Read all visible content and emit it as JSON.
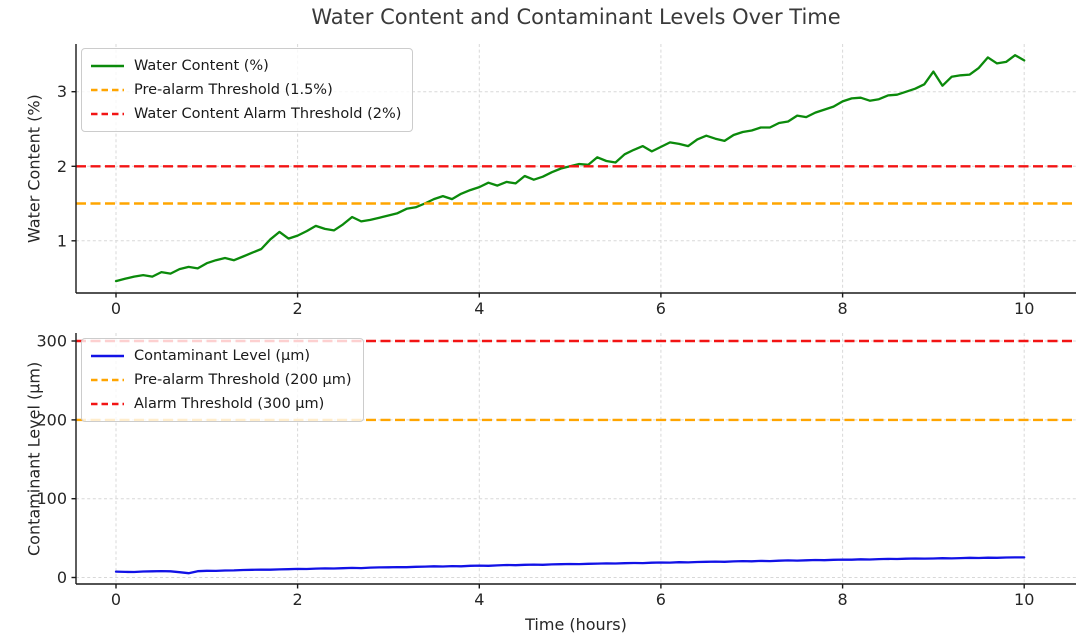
{
  "chart_data": {
    "type": "line",
    "title": "Water Content and Contaminant Levels Over Time",
    "xlabel": "Time (hours)",
    "layout": "two stacked subplots sharing the same time axis, grid on, legends upper-left",
    "style": {
      "grid_color": "#d8d8d8",
      "spine_color": "#1a1a1a",
      "tick_text_color": "#262626",
      "title_color": "#3a3a3a",
      "legend_border": "#cccccc",
      "water_color": "#0b8a0b",
      "contaminant_color": "#1212e6",
      "prealarm_color": "#ffa500",
      "alarm_color": "#f21414"
    },
    "x": [
      0,
      0.1,
      0.2,
      0.3,
      0.4,
      0.5,
      0.6,
      0.7,
      0.8,
      0.9,
      1,
      1.1,
      1.2,
      1.3,
      1.4,
      1.5,
      1.6,
      1.7,
      1.8,
      1.9,
      2,
      2.1,
      2.2,
      2.3,
      2.4,
      2.5,
      2.6,
      2.7,
      2.8,
      2.9,
      3,
      3.1,
      3.2,
      3.3,
      3.4,
      3.5,
      3.6,
      3.7,
      3.8,
      3.9,
      4,
      4.1,
      4.2,
      4.3,
      4.4,
      4.5,
      4.6,
      4.7,
      4.8,
      4.9,
      5,
      5.1,
      5.2,
      5.3,
      5.4,
      5.5,
      5.6,
      5.7,
      5.8,
      5.9,
      6,
      6.1,
      6.2,
      6.3,
      6.4,
      6.5,
      6.6,
      6.7,
      6.8,
      6.9,
      7,
      7.1,
      7.2,
      7.3,
      7.4,
      7.5,
      7.6,
      7.7,
      7.8,
      7.9,
      8,
      8.1,
      8.2,
      8.3,
      8.4,
      8.5,
      8.6,
      8.7,
      8.8,
      8.9,
      9,
      9.1,
      9.2,
      9.3,
      9.4,
      9.5,
      9.6,
      9.7,
      9.8,
      9.9,
      10
    ],
    "charts": [
      {
        "id": "water-content",
        "ylabel": "Water Content (%)",
        "xlim": [
          -0.44,
          10.57
        ],
        "ylim": [
          0.3,
          3.64
        ],
        "xticks": [
          0,
          2,
          4,
          6,
          8,
          10
        ],
        "yticks": [
          1,
          2,
          3
        ],
        "grid": true,
        "legend_position": "upper left",
        "series": [
          {
            "name": "Water Content (%)",
            "kind": "line",
            "linestyle": "solid",
            "color": "#0b8a0b",
            "y": [
              0.46,
              0.49,
              0.52,
              0.54,
              0.52,
              0.58,
              0.56,
              0.62,
              0.65,
              0.63,
              0.7,
              0.74,
              0.77,
              0.74,
              0.79,
              0.84,
              0.89,
              1.02,
              1.12,
              1.03,
              1.07,
              1.13,
              1.2,
              1.16,
              1.14,
              1.22,
              1.32,
              1.26,
              1.28,
              1.31,
              1.34,
              1.37,
              1.43,
              1.45,
              1.5,
              1.56,
              1.6,
              1.56,
              1.63,
              1.68,
              1.72,
              1.78,
              1.74,
              1.79,
              1.77,
              1.87,
              1.82,
              1.86,
              1.92,
              1.97,
              2.0,
              2.03,
              2.02,
              2.12,
              2.07,
              2.05,
              2.16,
              2.22,
              2.27,
              2.2,
              2.26,
              2.32,
              2.3,
              2.27,
              2.36,
              2.41,
              2.37,
              2.34,
              2.42,
              2.46,
              2.48,
              2.52,
              2.52,
              2.58,
              2.6,
              2.68,
              2.66,
              2.72,
              2.76,
              2.8,
              2.87,
              2.91,
              2.92,
              2.88,
              2.9,
              2.95,
              2.96,
              3.0,
              3.04,
              3.1,
              3.27,
              3.08,
              3.2,
              3.22,
              3.23,
              3.32,
              3.46,
              3.38,
              3.4,
              3.49,
              3.42
            ]
          },
          {
            "name": "Pre-alarm Threshold (1.5%)",
            "kind": "hline",
            "linestyle": "dashed",
            "color": "#ffa500",
            "value": 1.5
          },
          {
            "name": "Water Content Alarm Threshold (2%)",
            "kind": "hline",
            "linestyle": "dashed",
            "color": "#f21414",
            "value": 2
          }
        ]
      },
      {
        "id": "contaminant-level",
        "ylabel": "Contaminant Level (µm)",
        "xlim": [
          -0.44,
          10.57
        ],
        "ylim": [
          -8.2,
          310.2
        ],
        "xticks": [
          0,
          2,
          4,
          6,
          8,
          10
        ],
        "yticks": [
          0,
          100,
          200,
          300
        ],
        "grid": true,
        "legend_position": "upper left",
        "series": [
          {
            "name": "Contaminant Level (µm)",
            "kind": "line",
            "linestyle": "solid",
            "color": "#1212e6",
            "y": [
              7.5,
              7.2,
              7.0,
              7.6,
              7.9,
              8.2,
              7.9,
              6.8,
              5.5,
              8.0,
              8.6,
              8.4,
              8.9,
              9.1,
              9.5,
              9.8,
              10.0,
              9.9,
              10.3,
              10.6,
              11.0,
              10.8,
              11.3,
              11.6,
              11.4,
              11.8,
              12.2,
              12.0,
              12.6,
              12.8,
              13.0,
              13.3,
              13.1,
              13.6,
              13.9,
              14.2,
              14.0,
              14.5,
              14.3,
              14.9,
              15.1,
              14.9,
              15.4,
              15.9,
              15.7,
              16.1,
              16.4,
              16.2,
              16.7,
              16.9,
              17.2,
              17.0,
              17.4,
              17.7,
              17.9,
              17.8,
              18.2,
              18.5,
              18.3,
              18.8,
              19.1,
              18.9,
              19.4,
              19.2,
              19.7,
              19.9,
              20.2,
              20.0,
              20.5,
              20.8,
              20.6,
              21.1,
              20.9,
              21.4,
              21.7,
              21.5,
              21.9,
              22.2,
              22.0,
              22.5,
              22.8,
              22.6,
              23.1,
              22.9,
              23.4,
              23.7,
              23.5,
              23.9,
              24.2,
              24.0,
              24.2,
              24.5,
              24.3,
              24.7,
              25.0,
              24.8,
              25.2,
              25.0,
              25.4,
              25.6,
              25.5
            ]
          },
          {
            "name": "Pre-alarm Threshold (200 µm)",
            "kind": "hline",
            "linestyle": "dashed",
            "color": "#ffa500",
            "value": 200
          },
          {
            "name": "Alarm Threshold (300 µm)",
            "kind": "hline",
            "linestyle": "dashed",
            "color": "#f21414",
            "value": 300
          }
        ]
      }
    ]
  }
}
